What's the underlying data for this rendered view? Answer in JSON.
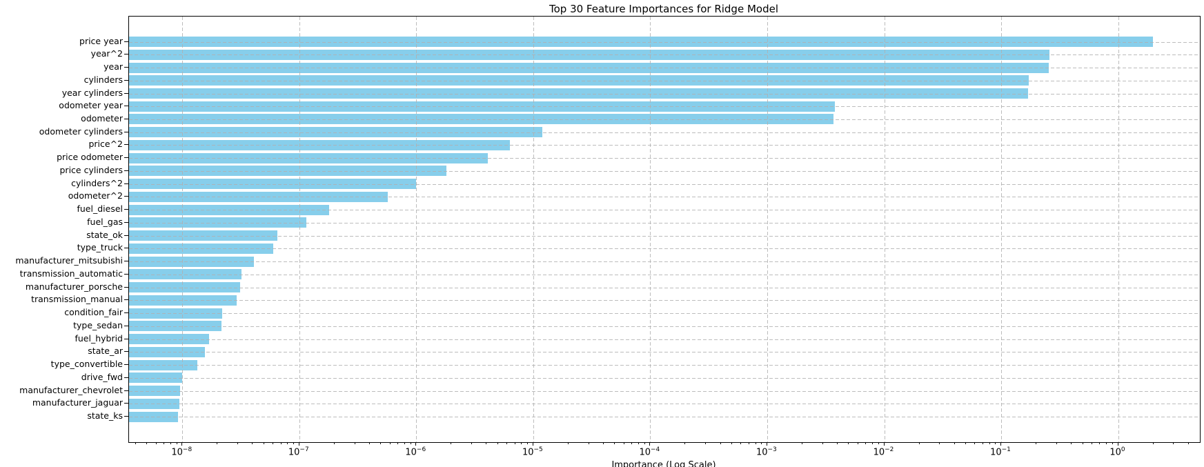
{
  "chart_data": {
    "type": "bar",
    "orientation": "horizontal",
    "title": "Top 30 Feature Importances for Ridge Model",
    "xlabel": "Importance (Log Scale)",
    "x_scale": "log",
    "xlim": [
      3.5e-09,
      5.0
    ],
    "xticks_exponents": [
      -8,
      -7,
      -6,
      -5,
      -4,
      -3,
      -2,
      -1,
      0
    ],
    "grid": true,
    "legend": "none",
    "bar_color": "#87CEEB",
    "grid_color": "#b0b0b0",
    "spine_color": "#000000",
    "background_color": "#ffffff",
    "categories": [
      "price year",
      "year^2",
      "year",
      "cylinders",
      "year cylinders",
      "odometer year",
      "odometer",
      "odometer cylinders",
      "price^2",
      "price odometer",
      "price cylinders",
      "cylinders^2",
      "odometer^2",
      "fuel_diesel",
      "fuel_gas",
      "state_ok",
      "type_truck",
      "manufacturer_mitsubishi",
      "transmission_automatic",
      "manufacturer_porsche",
      "transmission_manual",
      "condition_fair",
      "type_sedan",
      "fuel_hybrid",
      "state_ar",
      "type_convertible",
      "drive_fwd",
      "manufacturer_chevrolet",
      "manufacturer_jaguar",
      "state_ks"
    ],
    "values": [
      2.0,
      0.26,
      0.255,
      0.172,
      0.17,
      0.0038,
      0.0037,
      1.2e-05,
      6.3e-06,
      4.1e-06,
      1.8e-06,
      1e-06,
      5.7e-07,
      1.8e-07,
      1.15e-07,
      6.5e-08,
      6e-08,
      4.1e-08,
      3.2e-08,
      3.1e-08,
      2.9e-08,
      2.2e-08,
      2.15e-08,
      1.7e-08,
      1.55e-08,
      1.35e-08,
      1e-08,
      9.6e-09,
      9.4e-09,
      9.2e-09
    ]
  }
}
